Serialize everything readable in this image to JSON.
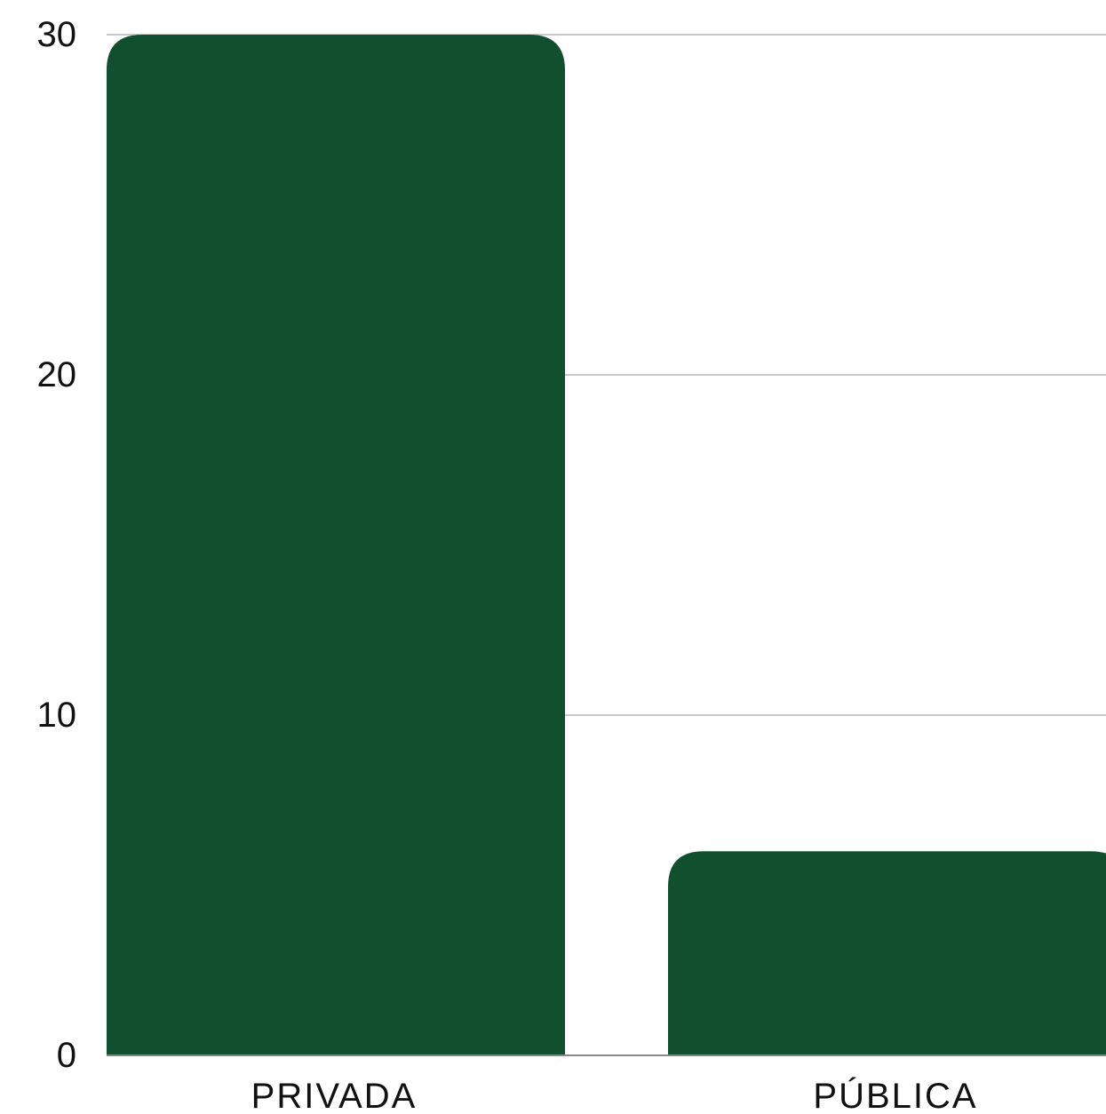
{
  "chart_data": {
    "type": "bar",
    "categories": [
      "PRIVADA",
      "PÚBLICA"
    ],
    "values": [
      30,
      6
    ],
    "title": "",
    "xlabel": "",
    "ylabel": "",
    "ylim": [
      0,
      30
    ],
    "yticks": [
      "0",
      "10",
      "20",
      "30"
    ],
    "grid": true,
    "bar_color": "#11502f"
  }
}
